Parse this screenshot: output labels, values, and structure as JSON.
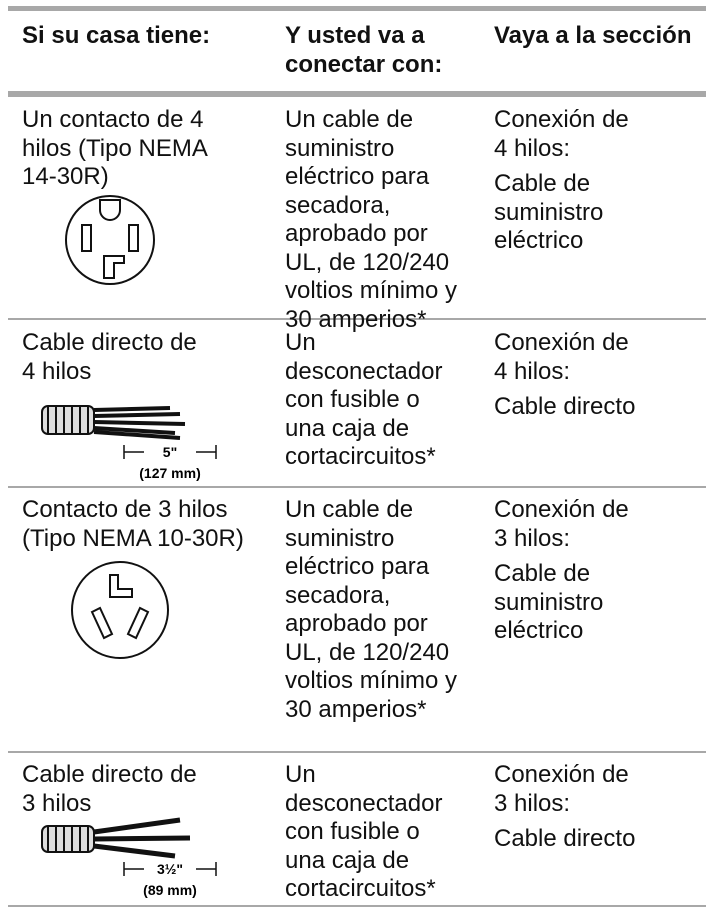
{
  "table": {
    "headers": [
      [
        "Si su casa tiene:"
      ],
      [
        "Y usted va a",
        "conectar con:"
      ],
      [
        "Vaya a la sección"
      ]
    ],
    "rows": [
      {
        "condition": [
          "Un contacto de 4",
          "hilos (Tipo NEMA",
          "14-30R)"
        ],
        "connection": [
          "Un cable de",
          "suministro",
          "eléctrico para",
          "secadora,",
          "aprobado por",
          "UL, de 120/240",
          "voltios mínimo y",
          "30 amperios*"
        ],
        "section": [
          [
            "Conexión de",
            "4 hilos:"
          ],
          [
            "Cable de",
            "suministro",
            "eléctrico"
          ]
        ]
      },
      {
        "condition": [
          "Cable directo de",
          "4 hilos"
        ],
        "connection": [
          "Un",
          "desconectador",
          "con fusible o",
          "una caja de",
          "cortacircuitos*"
        ],
        "section": [
          [
            "Conexión de",
            "4 hilos:"
          ],
          [
            "Cable directo"
          ]
        ],
        "dimension": [
          "5\"",
          "(127 mm)"
        ]
      },
      {
        "condition": [
          "Contacto de 3 hilos",
          "(Tipo NEMA 10-30R)"
        ],
        "connection": [
          "Un cable de",
          "suministro",
          "eléctrico para",
          "secadora,",
          "aprobado por",
          "UL, de 120/240",
          "voltios mínimo y",
          "30 amperios*"
        ],
        "section": [
          [
            "Conexión de",
            "3 hilos:"
          ],
          [
            "Cable de",
            "suministro",
            "eléctrico"
          ]
        ]
      },
      {
        "condition": [
          "Cable directo de",
          "3 hilos"
        ],
        "connection": [
          "Un",
          "desconectador",
          "con fusible o",
          "una caja de",
          "cortacircuitos*"
        ],
        "section": [
          [
            "Conexión de",
            "3 hilos:"
          ],
          [
            "Cable directo"
          ]
        ],
        "dimension": [
          "3½\"",
          "(89 mm)"
        ]
      }
    ]
  }
}
